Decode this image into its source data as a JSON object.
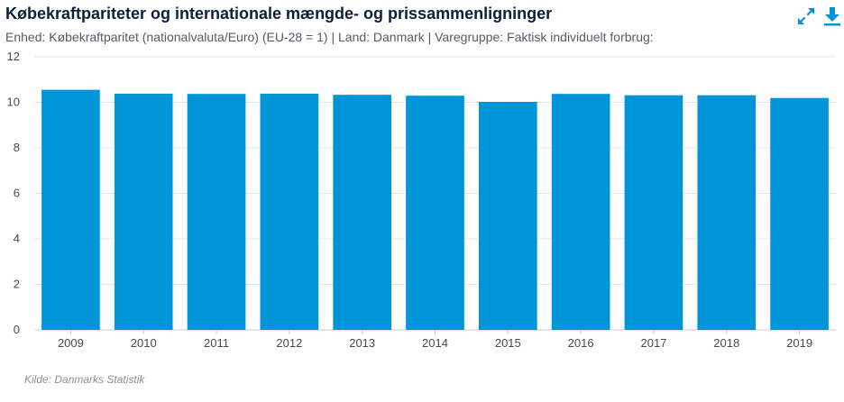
{
  "header": {
    "title": "Købekraftpariteter og internationale mængde- og prissammenligninger",
    "subtitle": "Enhed: Købekraftparitet (nationalvaluta/Euro) (EU-28 = 1) | Land: Danmark | Varegruppe: Faktisk individuelt forbrug:"
  },
  "toolbar": {
    "expand_icon": "expand-icon",
    "download_icon": "download-icon"
  },
  "colors": {
    "bar": "#0095d9",
    "title": "#0c1e3c",
    "icon": "#0095d9",
    "grid": "#e3e5e8"
  },
  "source": "Kilde: Danmarks Statistik",
  "chart_data": {
    "type": "bar",
    "categories": [
      "2009",
      "2010",
      "2011",
      "2012",
      "2013",
      "2014",
      "2015",
      "2016",
      "2017",
      "2018",
      "2019"
    ],
    "values": [
      10.55,
      10.38,
      10.37,
      10.38,
      10.33,
      10.29,
      10.02,
      10.37,
      10.31,
      10.31,
      10.19
    ],
    "xlabel": "",
    "ylabel": "",
    "ylim": [
      0,
      12
    ],
    "yticks": [
      0,
      2,
      4,
      6,
      8,
      10,
      12
    ],
    "grid": true,
    "legend": "none"
  }
}
